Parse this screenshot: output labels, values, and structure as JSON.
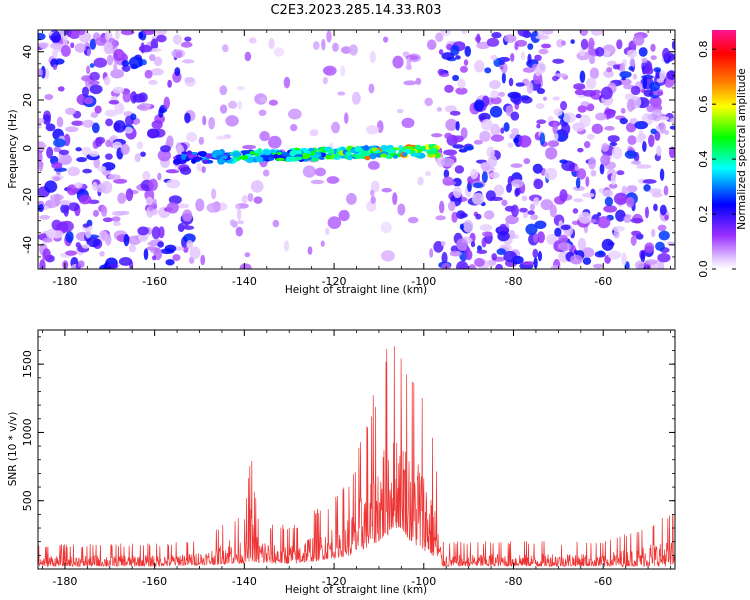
{
  "figure_title": "C2E3.2023.285.14.33.R03",
  "chart_data": [
    {
      "type": "heatmap",
      "xlabel": "Height of straight line (km)",
      "ylabel": "Frequency (Hz)",
      "xlim": [
        -186,
        -44
      ],
      "ylim": [
        -50,
        49
      ],
      "x_ticks": [
        -180,
        -160,
        -140,
        -120,
        -100,
        -80,
        -60
      ],
      "y_ticks": [
        -40,
        -20,
        0,
        20,
        40
      ],
      "grid": false,
      "colorbar": {
        "label": "Normalized spectral amplitude",
        "range": [
          0.0,
          0.87
        ],
        "ticks": [
          "0.0",
          "0.2",
          "0.4",
          "0.6",
          "0.8"
        ],
        "colormap": [
          "#ffffff",
          "#9b30ff",
          "#0000ff",
          "#00ffff",
          "#00ff00",
          "#ffff00",
          "#ff8000",
          "#ff0000",
          "#ff1493"
        ]
      },
      "features": {
        "noise_band_x_ranges": [
          [
            -186,
            -152
          ],
          [
            -97,
            -44
          ]
        ],
        "clear_band_x_range": [
          -152,
          -97
        ],
        "signal_track": {
          "x_range": [
            -155,
            -97
          ],
          "frequency_hz": [
            -4,
            -1
          ],
          "peak_amplitude": 0.7,
          "peak_x": [
            -113,
            -102
          ]
        }
      }
    },
    {
      "type": "line",
      "xlabel": "Height of straight line (km)",
      "ylabel": "SNR (10 * v/v)",
      "xlim": [
        -186,
        -44
      ],
      "ylim": [
        0,
        1750
      ],
      "x_ticks": [
        -180,
        -160,
        -140,
        -120,
        -100,
        -80,
        -60
      ],
      "y_ticks": [
        500,
        1000,
        1500
      ],
      "grid": false,
      "series": [
        {
          "color": "#ee3333",
          "envelope_x": [
            -186,
            -160,
            -148,
            -143,
            -140,
            -138.5,
            -137,
            -134,
            -128,
            -124,
            -120,
            -116,
            -113,
            -110,
            -108,
            -107,
            -105,
            -103,
            -101,
            -99,
            -97.5,
            -96,
            -80,
            -60,
            -44
          ],
          "envelope_upper": [
            180,
            190,
            220,
            420,
            350,
            900,
            420,
            330,
            340,
            450,
            520,
            720,
            1100,
            1400,
            1700,
            1720,
            1720,
            1500,
            1520,
            1100,
            1000,
            200,
            210,
            200,
            430
          ],
          "envelope_lower": [
            20,
            20,
            30,
            40,
            40,
            60,
            40,
            40,
            40,
            60,
            80,
            100,
            150,
            200,
            250,
            300,
            300,
            200,
            150,
            120,
            80,
            20,
            20,
            20,
            20
          ]
        }
      ]
    }
  ]
}
